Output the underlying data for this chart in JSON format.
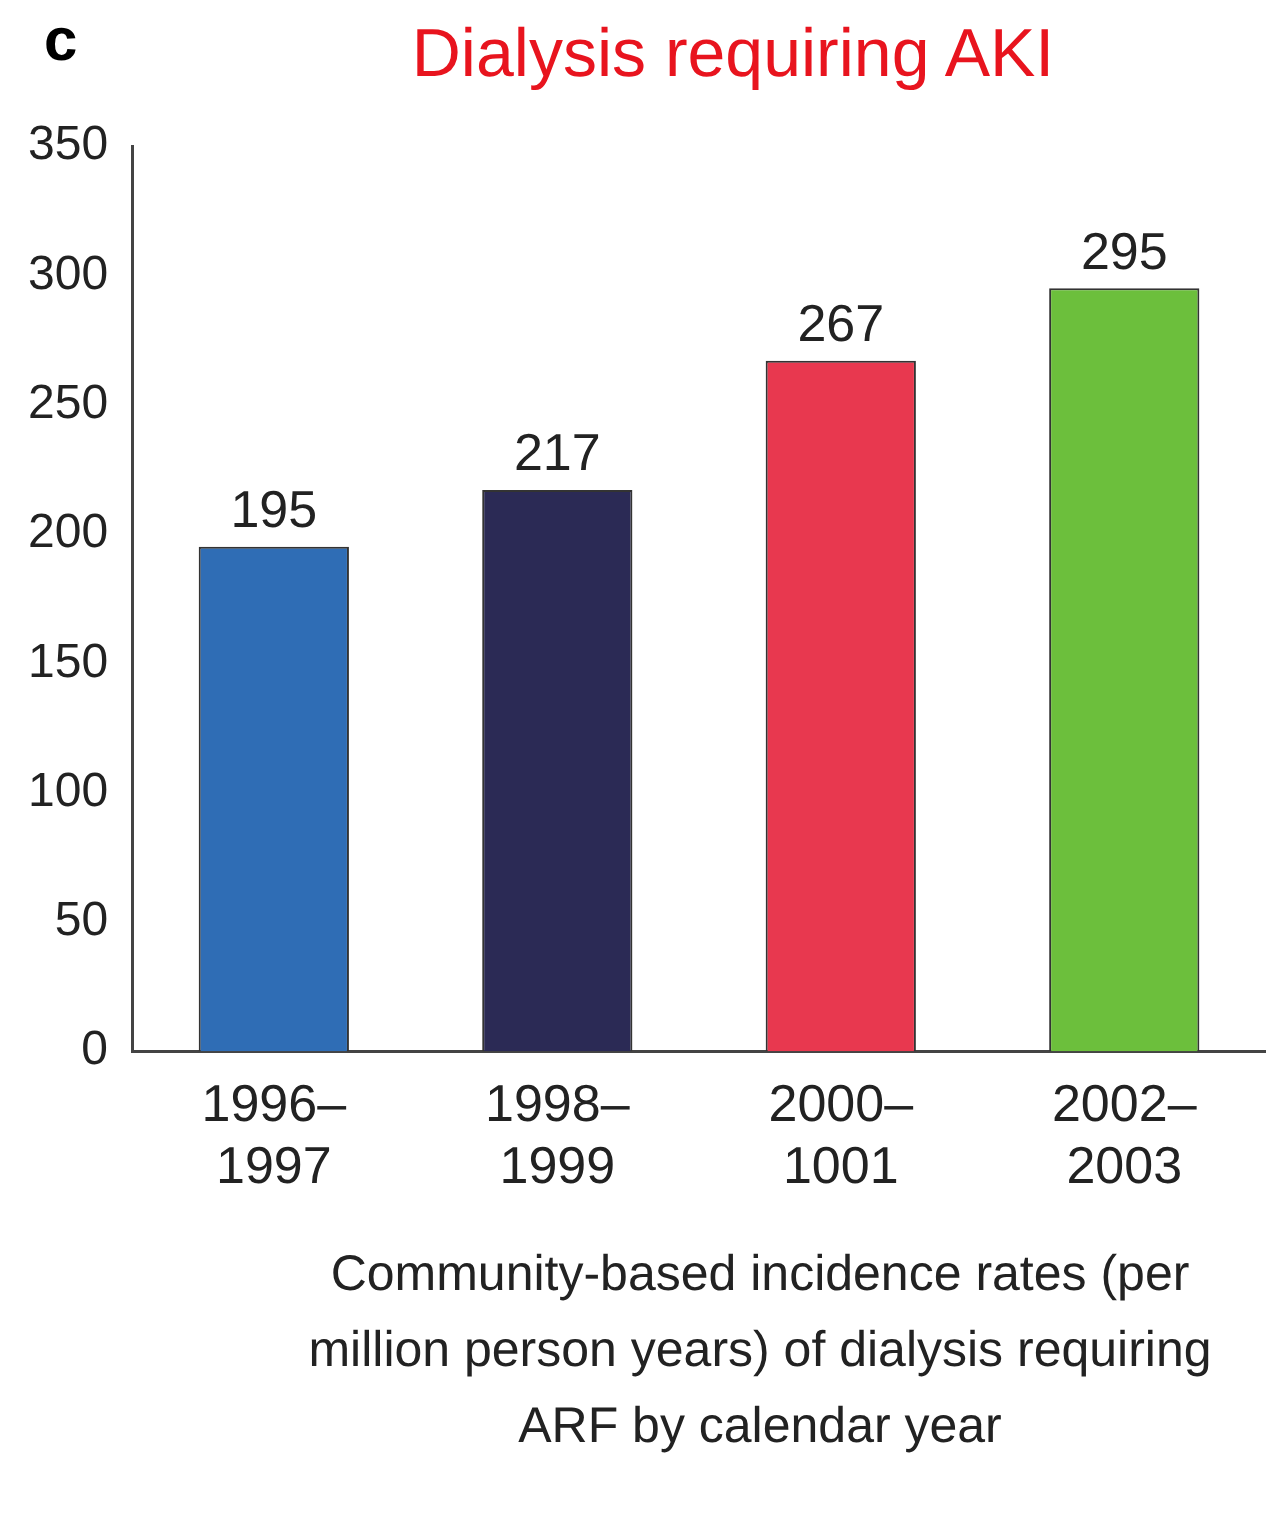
{
  "chart_data": {
    "type": "bar",
    "title": "Dialysis requiring AKI",
    "xlabel": "Community-based incidence rates (per million person years) of dialysis requiring ARF by calendar year",
    "annotations": [
      "c"
    ],
    "categories": [
      "1996–1997",
      "1998–1999",
      "2000–1001",
      "2002–2003"
    ],
    "values": [
      195,
      217,
      267,
      295
    ],
    "colors": [
      "#2f6db5",
      "#2b2a55",
      "#e8384f",
      "#6cbf3c"
    ],
    "ylim": [
      0,
      350
    ],
    "yticks": [
      0,
      50,
      100,
      150,
      200,
      250,
      300,
      350
    ],
    "grid": false,
    "data_labels": true,
    "legend": false
  }
}
